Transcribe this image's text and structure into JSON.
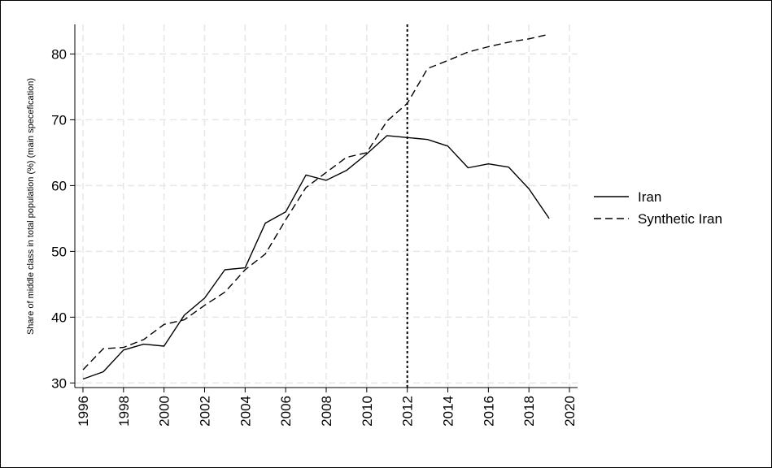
{
  "chart_data": {
    "type": "line",
    "ylabel": "Share of middle class in total population (%) (main specefication)",
    "xlabel": "",
    "xlim": [
      1995.6,
      2020.4
    ],
    "ylim": [
      29.3,
      84.5
    ],
    "x_ticks": [
      1996,
      1998,
      2000,
      2002,
      2004,
      2006,
      2008,
      2010,
      2012,
      2014,
      2016,
      2018,
      2020
    ],
    "y_ticks": [
      30,
      40,
      50,
      60,
      70,
      80
    ],
    "grid": true,
    "legend_position": "right",
    "vertical_line": 2012,
    "series": [
      {
        "name": "Iran",
        "style": "solid",
        "x": [
          1996,
          1997,
          1998,
          1999,
          2000,
          2001,
          2002,
          2003,
          2004,
          2005,
          2006,
          2007,
          2008,
          2009,
          2010,
          2011,
          2012,
          2013,
          2014,
          2015,
          2016,
          2017,
          2018,
          2019
        ],
        "values": [
          30.6,
          31.7,
          35.0,
          35.9,
          35.6,
          40.3,
          42.9,
          47.2,
          47.5,
          54.3,
          56.0,
          61.6,
          60.8,
          62.3,
          64.8,
          67.6,
          67.3,
          67.0,
          66.0,
          62.7,
          63.3,
          62.8,
          59.5,
          55.0
        ]
      },
      {
        "name": "Synthetic Iran",
        "style": "dashed",
        "x": [
          1996,
          1997,
          1998,
          1999,
          2000,
          2001,
          2002,
          2003,
          2004,
          2005,
          2006,
          2007,
          2008,
          2009,
          2010,
          2011,
          2012,
          2013,
          2014,
          2015,
          2016,
          2017,
          2018,
          2019
        ],
        "values": [
          32.0,
          35.2,
          35.4,
          36.6,
          38.9,
          39.6,
          41.8,
          43.8,
          47.2,
          49.6,
          54.8,
          59.7,
          62.0,
          64.3,
          65.0,
          69.8,
          72.5,
          77.8,
          79.0,
          80.3,
          81.1,
          81.8,
          82.3,
          83.0
        ]
      }
    ]
  }
}
